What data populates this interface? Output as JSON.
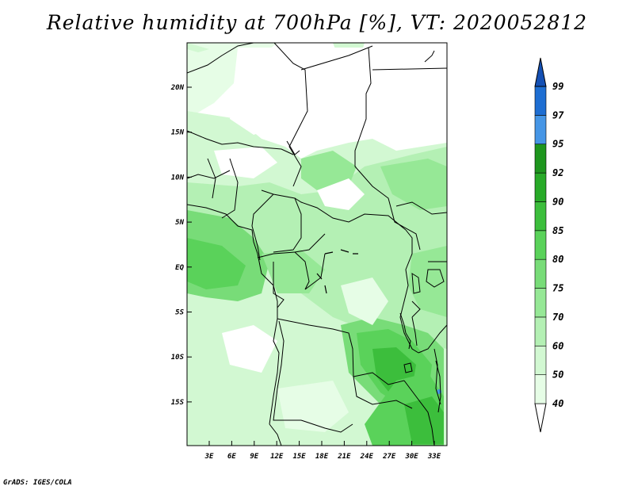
{
  "title": "Relative humidity at 700hPa [%], VT: 2020052812",
  "credit": "GrADS: IGES/COLA",
  "map": {
    "lat_labels": [
      "20N",
      "15N",
      "10N",
      "5N",
      "EQ",
      "5S",
      "10S",
      "15S"
    ],
    "lon_labels": [
      "3E",
      "6E",
      "9E",
      "12E",
      "15E",
      "18E",
      "21E",
      "24E",
      "27E",
      "30E",
      "33E"
    ]
  },
  "colorbar": {
    "labels": [
      "40",
      "50",
      "60",
      "70",
      "75",
      "80",
      "85",
      "90",
      "92",
      "95",
      "97",
      "99"
    ],
    "colors": [
      "#ffffff",
      "#e6fde6",
      "#d2f8d2",
      "#b4f0b4",
      "#96e896",
      "#78dc78",
      "#5ad25a",
      "#3cbe3c",
      "#28aa28",
      "#1e961e",
      "#4696e6",
      "#1e6ed2",
      "#1450b4"
    ]
  }
}
